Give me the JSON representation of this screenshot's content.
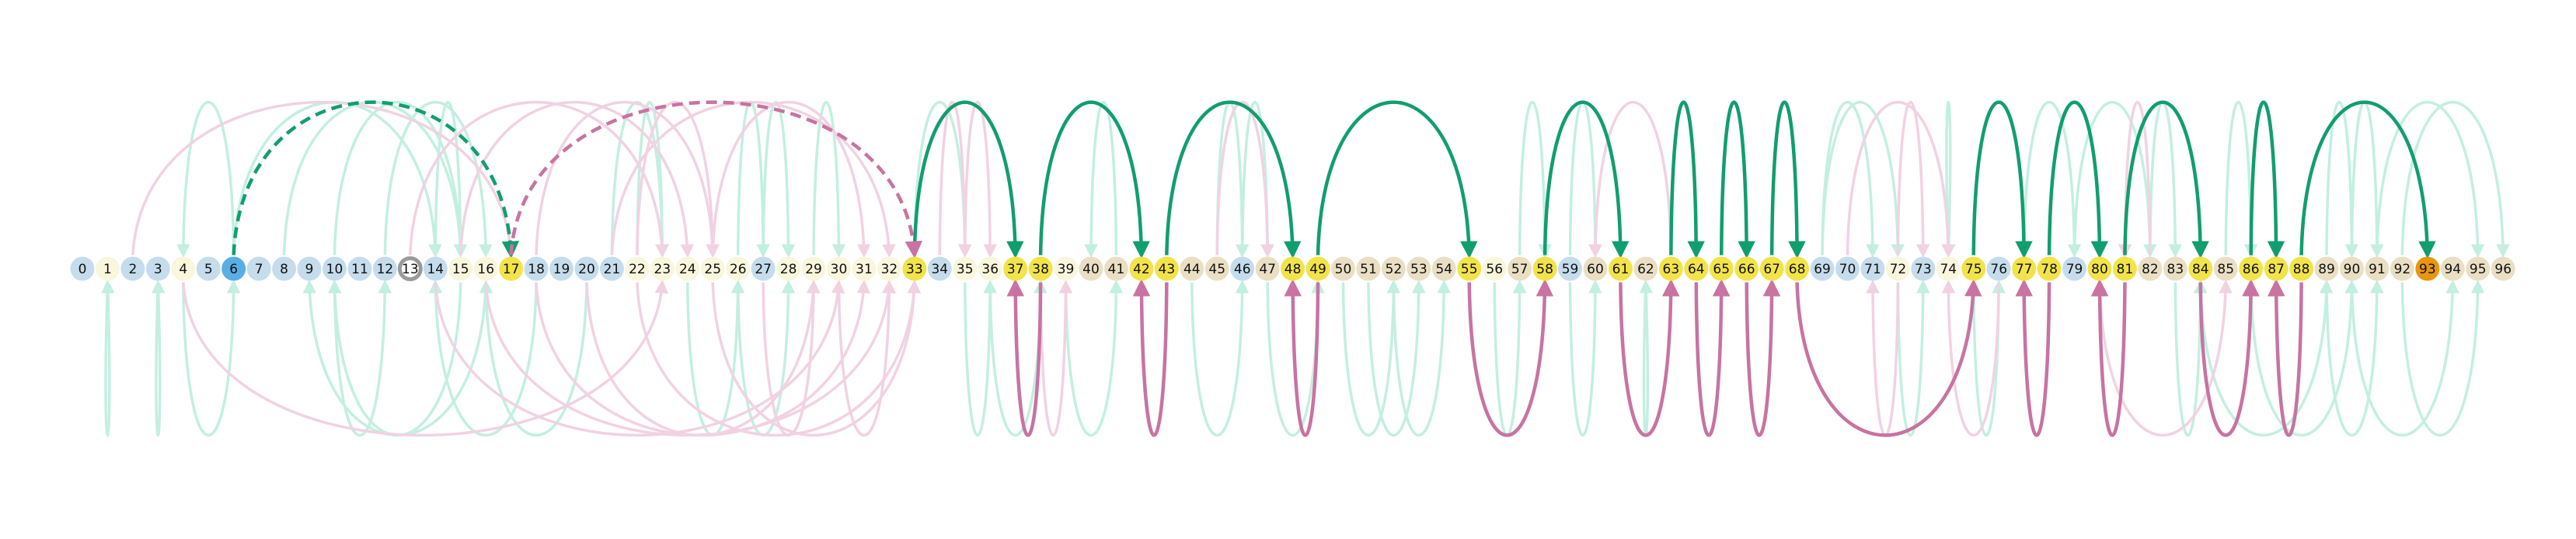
{
  "diagram": {
    "nodes": [
      {
        "label": "0",
        "color": "#c5dcec"
      },
      {
        "label": "1",
        "color": "#f8f6dc"
      },
      {
        "label": "2",
        "color": "#c5dcec"
      },
      {
        "label": "3",
        "color": "#c5dcec"
      },
      {
        "label": "4",
        "color": "#f8f6dc"
      },
      {
        "label": "5",
        "color": "#c5dcec"
      },
      {
        "label": "6",
        "color": "#5aaee6"
      },
      {
        "label": "7",
        "color": "#c5dcec"
      },
      {
        "label": "8",
        "color": "#c5dcec"
      },
      {
        "label": "9",
        "color": "#c5dcec"
      },
      {
        "label": "10",
        "color": "#c5dcec"
      },
      {
        "label": "11",
        "color": "#c5dcec"
      },
      {
        "label": "12",
        "color": "#c5dcec"
      },
      {
        "label": "13",
        "color": "#ffffff",
        "ring": "#9a9a9a"
      },
      {
        "label": "14",
        "color": "#c5dcec"
      },
      {
        "label": "15",
        "color": "#f8f6dc"
      },
      {
        "label": "16",
        "color": "#f8f6dc"
      },
      {
        "label": "17",
        "color": "#f2e34a"
      },
      {
        "label": "18",
        "color": "#c5dcec"
      },
      {
        "label": "19",
        "color": "#c5dcec"
      },
      {
        "label": "20",
        "color": "#c5dcec"
      },
      {
        "label": "21",
        "color": "#c5dcec"
      },
      {
        "label": "22",
        "color": "#f8f6dc"
      },
      {
        "label": "23",
        "color": "#f8f6dc"
      },
      {
        "label": "24",
        "color": "#f8f6dc"
      },
      {
        "label": "25",
        "color": "#f8f6dc"
      },
      {
        "label": "26",
        "color": "#f8f6dc"
      },
      {
        "label": "27",
        "color": "#c5dcec"
      },
      {
        "label": "28",
        "color": "#f8f6dc"
      },
      {
        "label": "29",
        "color": "#f8f6dc"
      },
      {
        "label": "30",
        "color": "#f8f6dc"
      },
      {
        "label": "31",
        "color": "#f8f6dc"
      },
      {
        "label": "32",
        "color": "#f8f6dc"
      },
      {
        "label": "33",
        "color": "#f2e34a"
      },
      {
        "label": "34",
        "color": "#c5dcec"
      },
      {
        "label": "35",
        "color": "#f8f6dc"
      },
      {
        "label": "36",
        "color": "#f8f6dc"
      },
      {
        "label": "37",
        "color": "#f2e34a"
      },
      {
        "label": "38",
        "color": "#f2e34a"
      },
      {
        "label": "39",
        "color": "#f8f6dc"
      },
      {
        "label": "40",
        "color": "#eadfc4"
      },
      {
        "label": "41",
        "color": "#eadfc4"
      },
      {
        "label": "42",
        "color": "#f2e34a"
      },
      {
        "label": "43",
        "color": "#f2e34a"
      },
      {
        "label": "44",
        "color": "#eadfc4"
      },
      {
        "label": "45",
        "color": "#eadfc4"
      },
      {
        "label": "46",
        "color": "#c5dcec"
      },
      {
        "label": "47",
        "color": "#eadfc4"
      },
      {
        "label": "48",
        "color": "#f2e34a"
      },
      {
        "label": "49",
        "color": "#f2e34a"
      },
      {
        "label": "50",
        "color": "#eadfc4"
      },
      {
        "label": "51",
        "color": "#eadfc4"
      },
      {
        "label": "52",
        "color": "#eadfc4"
      },
      {
        "label": "53",
        "color": "#eadfc4"
      },
      {
        "label": "54",
        "color": "#eadfc4"
      },
      {
        "label": "55",
        "color": "#f2e34a"
      },
      {
        "label": "56",
        "color": "#f8f6dc"
      },
      {
        "label": "57",
        "color": "#eadfc4"
      },
      {
        "label": "58",
        "color": "#f2e34a"
      },
      {
        "label": "59",
        "color": "#c5dcec"
      },
      {
        "label": "60",
        "color": "#eadfc4"
      },
      {
        "label": "61",
        "color": "#f2e34a"
      },
      {
        "label": "62",
        "color": "#eadfc4"
      },
      {
        "label": "63",
        "color": "#f2e34a"
      },
      {
        "label": "64",
        "color": "#f2e34a"
      },
      {
        "label": "65",
        "color": "#f2e34a"
      },
      {
        "label": "66",
        "color": "#f2e34a"
      },
      {
        "label": "67",
        "color": "#f2e34a"
      },
      {
        "label": "68",
        "color": "#f2e34a"
      },
      {
        "label": "69",
        "color": "#c5dcec"
      },
      {
        "label": "70",
        "color": "#c5dcec"
      },
      {
        "label": "71",
        "color": "#c5dcec"
      },
      {
        "label": "72",
        "color": "#f8f6dc"
      },
      {
        "label": "73",
        "color": "#c5dcec"
      },
      {
        "label": "74",
        "color": "#f8f6dc"
      },
      {
        "label": "75",
        "color": "#f2e34a"
      },
      {
        "label": "76",
        "color": "#c5dcec"
      },
      {
        "label": "77",
        "color": "#f2e34a"
      },
      {
        "label": "78",
        "color": "#f2e34a"
      },
      {
        "label": "79",
        "color": "#c5dcec"
      },
      {
        "label": "80",
        "color": "#f2e34a"
      },
      {
        "label": "81",
        "color": "#f2e34a"
      },
      {
        "label": "82",
        "color": "#eadfc4"
      },
      {
        "label": "83",
        "color": "#eadfc4"
      },
      {
        "label": "84",
        "color": "#f2e34a"
      },
      {
        "label": "85",
        "color": "#eadfc4"
      },
      {
        "label": "86",
        "color": "#f2e34a"
      },
      {
        "label": "87",
        "color": "#f2e34a"
      },
      {
        "label": "88",
        "color": "#f2e34a"
      },
      {
        "label": "89",
        "color": "#eadfc4"
      },
      {
        "label": "90",
        "color": "#eadfc4"
      },
      {
        "label": "91",
        "color": "#eadfc4"
      },
      {
        "label": "92",
        "color": "#eadfc4"
      },
      {
        "label": "93",
        "color": "#e8960e"
      },
      {
        "label": "94",
        "color": "#eadfc4"
      },
      {
        "label": "95",
        "color": "#eadfc4"
      },
      {
        "label": "96",
        "color": "#eadfc4"
      }
    ],
    "edges_strong": [
      {
        "from": 33,
        "to": 37,
        "side": "up",
        "style": "solid",
        "color": "green"
      },
      {
        "from": 38,
        "to": 42,
        "side": "up",
        "style": "solid",
        "color": "green"
      },
      {
        "from": 43,
        "to": 48,
        "side": "up",
        "style": "solid",
        "color": "green"
      },
      {
        "from": 49,
        "to": 55,
        "side": "up",
        "style": "solid",
        "color": "green"
      },
      {
        "from": 58,
        "to": 61,
        "side": "up",
        "style": "solid",
        "color": "green"
      },
      {
        "from": 63,
        "to": 64,
        "side": "up",
        "style": "solid",
        "color": "green"
      },
      {
        "from": 65,
        "to": 66,
        "side": "up",
        "style": "solid",
        "color": "green"
      },
      {
        "from": 67,
        "to": 68,
        "side": "up",
        "style": "solid",
        "color": "green"
      },
      {
        "from": 75,
        "to": 77,
        "side": "up",
        "style": "solid",
        "color": "green"
      },
      {
        "from": 78,
        "to": 80,
        "side": "up",
        "style": "solid",
        "color": "green"
      },
      {
        "from": 81,
        "to": 84,
        "side": "up",
        "style": "solid",
        "color": "green"
      },
      {
        "from": 86,
        "to": 87,
        "side": "up",
        "style": "solid",
        "color": "green"
      },
      {
        "from": 88,
        "to": 93,
        "side": "up",
        "style": "solid",
        "color": "green"
      },
      {
        "from": 6,
        "to": 17,
        "side": "up",
        "style": "dashed",
        "color": "green"
      },
      {
        "from": 17,
        "to": 33,
        "side": "up",
        "style": "dashed",
        "color": "pink"
      },
      {
        "from": 38,
        "to": 37,
        "side": "down",
        "style": "solid",
        "color": "pink"
      },
      {
        "from": 43,
        "to": 42,
        "side": "down",
        "style": "solid",
        "color": "pink"
      },
      {
        "from": 49,
        "to": 48,
        "side": "down",
        "style": "solid",
        "color": "pink"
      },
      {
        "from": 55,
        "to": 58,
        "side": "down",
        "style": "solid",
        "color": "pink"
      },
      {
        "from": 61,
        "to": 63,
        "side": "down",
        "style": "solid",
        "color": "pink"
      },
      {
        "from": 64,
        "to": 65,
        "side": "down",
        "style": "solid",
        "color": "pink"
      },
      {
        "from": 66,
        "to": 67,
        "side": "down",
        "style": "solid",
        "color": "pink"
      },
      {
        "from": 68,
        "to": 75,
        "side": "down",
        "style": "solid",
        "color": "pink"
      },
      {
        "from": 78,
        "to": 77,
        "side": "down",
        "style": "solid",
        "color": "pink"
      },
      {
        "from": 81,
        "to": 80,
        "side": "down",
        "style": "solid",
        "color": "pink"
      },
      {
        "from": 84,
        "to": 86,
        "side": "down",
        "style": "solid",
        "color": "pink"
      },
      {
        "from": 88,
        "to": 87,
        "side": "down",
        "style": "solid",
        "color": "pink"
      }
    ],
    "edges_faint": [
      {
        "from": 1,
        "to": 1,
        "side": "down",
        "color": "green"
      },
      {
        "from": 3,
        "to": 3,
        "side": "down",
        "color": "green"
      },
      {
        "from": 6,
        "to": 4,
        "side": "up",
        "color": "green"
      },
      {
        "from": 6,
        "to": 14,
        "side": "up",
        "color": "green"
      },
      {
        "from": 8,
        "to": 15,
        "side": "up",
        "color": "green"
      },
      {
        "from": 10,
        "to": 15,
        "side": "up",
        "color": "green"
      },
      {
        "from": 12,
        "to": 16,
        "side": "up",
        "color": "green"
      },
      {
        "from": 14,
        "to": 15,
        "side": "up",
        "color": "green"
      },
      {
        "from": 10,
        "to": 12,
        "side": "down",
        "color": "green"
      },
      {
        "from": 15,
        "to": 10,
        "side": "down",
        "color": "green"
      },
      {
        "from": 16,
        "to": 9,
        "side": "down",
        "color": "green"
      },
      {
        "from": 4,
        "to": 6,
        "side": "down",
        "color": "green"
      },
      {
        "from": 18,
        "to": 14,
        "side": "down",
        "color": "green"
      },
      {
        "from": 20,
        "to": 16,
        "side": "down",
        "color": "green"
      },
      {
        "from": 22,
        "to": 23,
        "side": "up",
        "color": "green"
      },
      {
        "from": 21,
        "to": 23,
        "side": "up",
        "color": "green"
      },
      {
        "from": 26,
        "to": 27,
        "side": "up",
        "color": "green"
      },
      {
        "from": 27,
        "to": 28,
        "side": "up",
        "color": "green"
      },
      {
        "from": 29,
        "to": 30,
        "side": "up",
        "color": "green"
      },
      {
        "from": 24,
        "to": 26,
        "side": "down",
        "color": "green"
      },
      {
        "from": 26,
        "to": 28,
        "side": "down",
        "color": "green"
      },
      {
        "from": 33,
        "to": 35,
        "side": "up",
        "color": "green"
      },
      {
        "from": 35,
        "to": 36,
        "side": "down",
        "color": "green"
      },
      {
        "from": 36,
        "to": 38,
        "side": "down",
        "color": "green"
      },
      {
        "from": 39,
        "to": 41,
        "side": "down",
        "color": "green"
      },
      {
        "from": 41,
        "to": 40,
        "side": "up",
        "color": "green"
      },
      {
        "from": 45,
        "to": 46,
        "side": "up",
        "color": "green"
      },
      {
        "from": 46,
        "to": 47,
        "side": "up",
        "color": "green"
      },
      {
        "from": 44,
        "to": 46,
        "side": "down",
        "color": "green"
      },
      {
        "from": 47,
        "to": 49,
        "side": "down",
        "color": "green"
      },
      {
        "from": 50,
        "to": 52,
        "side": "down",
        "color": "green"
      },
      {
        "from": 51,
        "to": 53,
        "side": "down",
        "color": "green"
      },
      {
        "from": 52,
        "to": 54,
        "side": "down",
        "color": "green"
      },
      {
        "from": 57,
        "to": 58,
        "side": "up",
        "color": "green"
      },
      {
        "from": 59,
        "to": 60,
        "side": "up",
        "color": "green"
      },
      {
        "from": 56,
        "to": 57,
        "side": "down",
        "color": "green"
      },
      {
        "from": 59,
        "to": 60,
        "side": "down",
        "color": "green"
      },
      {
        "from": 62,
        "to": 62,
        "side": "down",
        "color": "green"
      },
      {
        "from": 69,
        "to": 71,
        "side": "up",
        "color": "green"
      },
      {
        "from": 69,
        "to": 72,
        "side": "up",
        "color": "green"
      },
      {
        "from": 72,
        "to": 73,
        "side": "down",
        "color": "green"
      },
      {
        "from": 74,
        "to": 74,
        "side": "up",
        "color": "green"
      },
      {
        "from": 75,
        "to": 76,
        "side": "down",
        "color": "green"
      },
      {
        "from": 77,
        "to": 79,
        "side": "up",
        "color": "green"
      },
      {
        "from": 79,
        "to": 82,
        "side": "up",
        "color": "green"
      },
      {
        "from": 82,
        "to": 83,
        "side": "up",
        "color": "green"
      },
      {
        "from": 83,
        "to": 84,
        "side": "down",
        "color": "green"
      },
      {
        "from": 85,
        "to": 86,
        "side": "up",
        "color": "green"
      },
      {
        "from": 89,
        "to": 90,
        "side": "up",
        "color": "green"
      },
      {
        "from": 90,
        "to": 91,
        "side": "up",
        "color": "green"
      },
      {
        "from": 91,
        "to": 95,
        "side": "up",
        "color": "green"
      },
      {
        "from": 92,
        "to": 96,
        "side": "up",
        "color": "green"
      },
      {
        "from": 89,
        "to": 91,
        "side": "down",
        "color": "green"
      },
      {
        "from": 90,
        "to": 94,
        "side": "down",
        "color": "green"
      },
      {
        "from": 92,
        "to": 95,
        "side": "down",
        "color": "green"
      },
      {
        "from": 84,
        "to": 89,
        "side": "down",
        "color": "green"
      },
      {
        "from": 86,
        "to": 90,
        "side": "down",
        "color": "green"
      },
      {
        "from": 4,
        "to": 23,
        "side": "down",
        "color": "pink"
      },
      {
        "from": 2,
        "to": 17,
        "side": "up",
        "color": "pink"
      },
      {
        "from": 13,
        "to": 23,
        "side": "up",
        "color": "pink"
      },
      {
        "from": 15,
        "to": 24,
        "side": "up",
        "color": "pink"
      },
      {
        "from": 18,
        "to": 25,
        "side": "up",
        "color": "pink"
      },
      {
        "from": 22,
        "to": 25,
        "side": "up",
        "color": "pink"
      },
      {
        "from": 21,
        "to": 32,
        "side": "up",
        "color": "pink"
      },
      {
        "from": 25,
        "to": 31,
        "side": "up",
        "color": "pink"
      },
      {
        "from": 14,
        "to": 30,
        "side": "down",
        "color": "pink"
      },
      {
        "from": 16,
        "to": 32,
        "side": "down",
        "color": "pink"
      },
      {
        "from": 18,
        "to": 31,
        "side": "down",
        "color": "pink"
      },
      {
        "from": 20,
        "to": 29,
        "side": "down",
        "color": "pink"
      },
      {
        "from": 22,
        "to": 33,
        "side": "down",
        "color": "pink"
      },
      {
        "from": 25,
        "to": 33,
        "side": "down",
        "color": "pink"
      },
      {
        "from": 30,
        "to": 32,
        "side": "down",
        "color": "pink"
      },
      {
        "from": 27,
        "to": 29,
        "side": "down",
        "color": "pink"
      },
      {
        "from": 34,
        "to": 35,
        "side": "up",
        "color": "pink"
      },
      {
        "from": 35,
        "to": 36,
        "side": "up",
        "color": "pink"
      },
      {
        "from": 38,
        "to": 39,
        "side": "down",
        "color": "pink"
      },
      {
        "from": 45,
        "to": 47,
        "side": "up",
        "color": "pink"
      },
      {
        "from": 63,
        "to": 60,
        "side": "up",
        "color": "pink"
      },
      {
        "from": 70,
        "to": 74,
        "side": "up",
        "color": "pink"
      },
      {
        "from": 72,
        "to": 73,
        "side": "up",
        "color": "pink"
      },
      {
        "from": 72,
        "to": 71,
        "side": "down",
        "color": "pink"
      },
      {
        "from": 80,
        "to": 85,
        "side": "down",
        "color": "pink"
      },
      {
        "from": 82,
        "to": 81,
        "side": "up",
        "color": "pink"
      },
      {
        "from": 76,
        "to": 74,
        "side": "down",
        "color": "pink"
      }
    ]
  }
}
